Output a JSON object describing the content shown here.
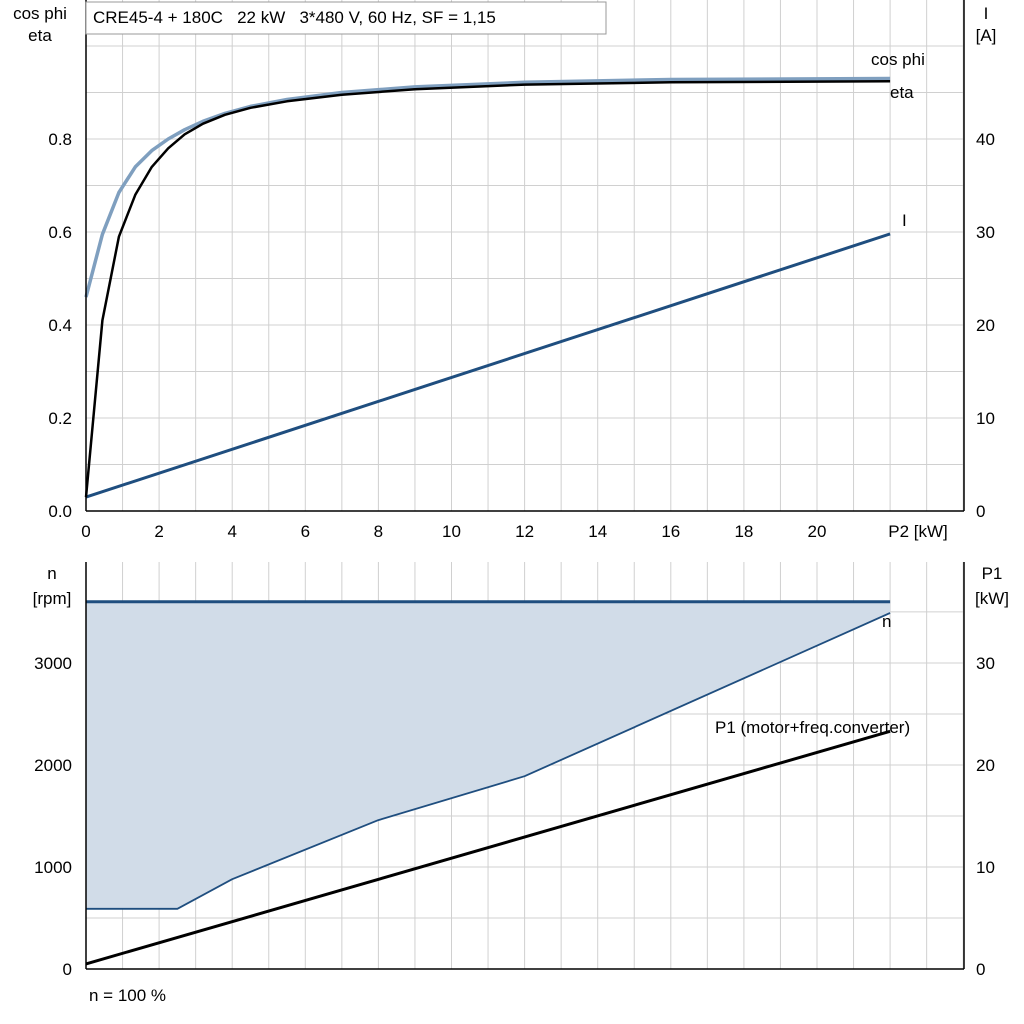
{
  "title": "CRE45-4 + 180C   22 kW   3*480 V, 60 Hz, SF = 1,15",
  "footnote": "n = 100 %",
  "colors": {
    "cos_phi": "#7f9fbf",
    "eta": "#000000",
    "current": "#1f4e7f",
    "speed": "#1f4e7f",
    "speed_fill": "#d1dce8",
    "p1": "#000000",
    "grid": "#d0d0d0"
  },
  "chart_data": [
    {
      "type": "line",
      "panel": "top",
      "title": "CRE45-4 + 180C   22 kW   3*480 V, 60 Hz, SF = 1,15",
      "xlabel": "P2 [kW]",
      "x_range": [
        0,
        24
      ],
      "x_ticks": [
        0,
        2,
        4,
        6,
        8,
        10,
        12,
        14,
        16,
        18,
        20
      ],
      "ylabel_left": [
        "cos phi",
        "eta"
      ],
      "y_left_range": [
        0,
        1.0
      ],
      "y_left_ticks": [
        "0.0",
        "0.2",
        "0.4",
        "0.6",
        "0.8"
      ],
      "ylabel_right": [
        "I",
        "[A]"
      ],
      "y_right_range": [
        0,
        50
      ],
      "y_right_ticks": [
        "0",
        "10",
        "20",
        "30",
        "40"
      ],
      "grid": true,
      "series": [
        {
          "name": "cos phi",
          "axis": "left",
          "x": [
            0,
            0.45,
            0.9,
            1.35,
            1.8,
            2.25,
            2.7,
            3.2,
            3.8,
            4.5,
            5.5,
            7,
            9,
            12,
            16,
            22
          ],
          "y": [
            0.46,
            0.595,
            0.685,
            0.74,
            0.775,
            0.8,
            0.82,
            0.838,
            0.855,
            0.87,
            0.885,
            0.9,
            0.912,
            0.922,
            0.928,
            0.93
          ]
        },
        {
          "name": "eta",
          "axis": "left",
          "x": [
            0,
            0.45,
            0.9,
            1.35,
            1.8,
            2.25,
            2.7,
            3.2,
            3.8,
            4.5,
            5.5,
            7,
            9,
            12,
            16,
            22
          ],
          "y": [
            0.03,
            0.41,
            0.59,
            0.68,
            0.74,
            0.78,
            0.81,
            0.833,
            0.852,
            0.867,
            0.881,
            0.895,
            0.907,
            0.917,
            0.922,
            0.924
          ]
        },
        {
          "name": "I",
          "axis": "right",
          "x": [
            0,
            22
          ],
          "y": [
            1.5,
            29.8
          ]
        }
      ]
    },
    {
      "type": "area",
      "panel": "bottom",
      "x_range": [
        0,
        24
      ],
      "ylabel_left": [
        "n",
        "[rpm]"
      ],
      "y_left_range": [
        0,
        3600
      ],
      "y_left_ticks": [
        "0",
        "1000",
        "2000",
        "3000"
      ],
      "ylabel_right": [
        "P1",
        "[kW]"
      ],
      "y_right_range": [
        0,
        36
      ],
      "y_right_ticks": [
        "0",
        "10",
        "20",
        "30"
      ],
      "grid": true,
      "series": [
        {
          "name": "n",
          "axis": "left",
          "x": [
            0,
            22
          ],
          "y": [
            3600,
            3600
          ]
        },
        {
          "name": "n (min)",
          "axis": "left",
          "x": [
            0,
            2.5,
            4,
            8,
            12,
            22
          ],
          "y": [
            590,
            590,
            880,
            1460,
            1890,
            3490
          ]
        },
        {
          "name": "P1 (motor+freq.converter)",
          "axis": "right",
          "x": [
            0,
            22
          ],
          "y": [
            0.5,
            23.3
          ]
        }
      ]
    }
  ]
}
